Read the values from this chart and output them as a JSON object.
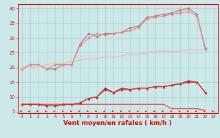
{
  "x": [
    0,
    1,
    2,
    3,
    4,
    5,
    6,
    7,
    8,
    9,
    10,
    11,
    12,
    13,
    14,
    15,
    16,
    17,
    18,
    19,
    20,
    21,
    22,
    23
  ],
  "series": [
    {
      "color": "#cc6666",
      "marker": "D",
      "markersize": 1.8,
      "linewidth": 0.8,
      "values": [
        19.5,
        21.0,
        21.0,
        19.5,
        19.5,
        21.0,
        21.0,
        28.0,
        31.5,
        30.5,
        31.5,
        31.5,
        32.0,
        33.5,
        34.0,
        37.0,
        37.5,
        38.0,
        38.5,
        39.5,
        40.0,
        38.0,
        26.5,
        null
      ]
    },
    {
      "color": "#dd8888",
      "marker": "D",
      "markersize": 1.8,
      "linewidth": 0.8,
      "values": [
        19.5,
        21.0,
        21.0,
        19.5,
        21.0,
        21.0,
        21.0,
        27.5,
        30.0,
        31.5,
        31.0,
        31.5,
        32.0,
        32.5,
        33.5,
        36.5,
        37.0,
        37.5,
        38.0,
        38.5,
        39.0,
        37.5,
        26.0,
        null
      ]
    },
    {
      "color": "#f0b8b8",
      "marker": null,
      "markersize": 0,
      "linewidth": 0.9,
      "values": [
        19.5,
        20.0,
        20.5,
        21.0,
        21.5,
        21.5,
        22.0,
        22.5,
        23.0,
        23.0,
        23.5,
        23.5,
        24.0,
        24.5,
        24.5,
        25.0,
        25.5,
        25.5,
        25.5,
        25.5,
        26.0,
        26.0,
        26.0,
        null
      ]
    },
    {
      "color": "#bb1111",
      "marker": "^",
      "markersize": 2.2,
      "linewidth": 0.8,
      "values": [
        7.5,
        7.5,
        7.5,
        7.0,
        7.0,
        7.5,
        7.5,
        8.0,
        9.5,
        10.0,
        13.0,
        11.5,
        13.0,
        12.5,
        13.0,
        13.0,
        13.5,
        13.5,
        14.0,
        14.5,
        15.5,
        15.0,
        11.5,
        null
      ]
    },
    {
      "color": "#cc2222",
      "marker": "^",
      "markersize": 2.2,
      "linewidth": 0.8,
      "values": [
        7.5,
        7.5,
        7.5,
        7.0,
        7.0,
        7.5,
        7.5,
        8.0,
        9.5,
        10.0,
        12.5,
        11.5,
        12.5,
        12.5,
        13.0,
        13.0,
        13.5,
        13.5,
        14.0,
        14.5,
        15.0,
        15.0,
        11.5,
        null
      ]
    },
    {
      "color": "#dd3333",
      "marker": null,
      "markersize": 0,
      "linewidth": 0.8,
      "values": [
        7.5,
        7.5,
        7.5,
        7.5,
        7.5,
        7.5,
        7.5,
        7.5,
        7.5,
        7.5,
        7.5,
        7.5,
        7.5,
        7.5,
        7.5,
        7.5,
        7.5,
        7.5,
        6.0,
        6.0,
        6.0,
        6.0,
        5.5,
        null
      ]
    }
  ],
  "xlabel": "Vent moyen/en rafales ( km/h )",
  "xlabel_color": "#cc0000",
  "xlabel_fontsize": 6.5,
  "xlabel_fontweight": "bold",
  "bg_color": "#cce8e8",
  "grid_color": "#aacccc",
  "axis_color": "#cc0000",
  "tick_color": "#cc0000",
  "ylim": [
    4.5,
    41.5
  ],
  "yticks": [
    5,
    10,
    15,
    20,
    25,
    30,
    35,
    40
  ],
  "xtick_fontsize": 4.2,
  "ytick_fontsize": 4.8
}
